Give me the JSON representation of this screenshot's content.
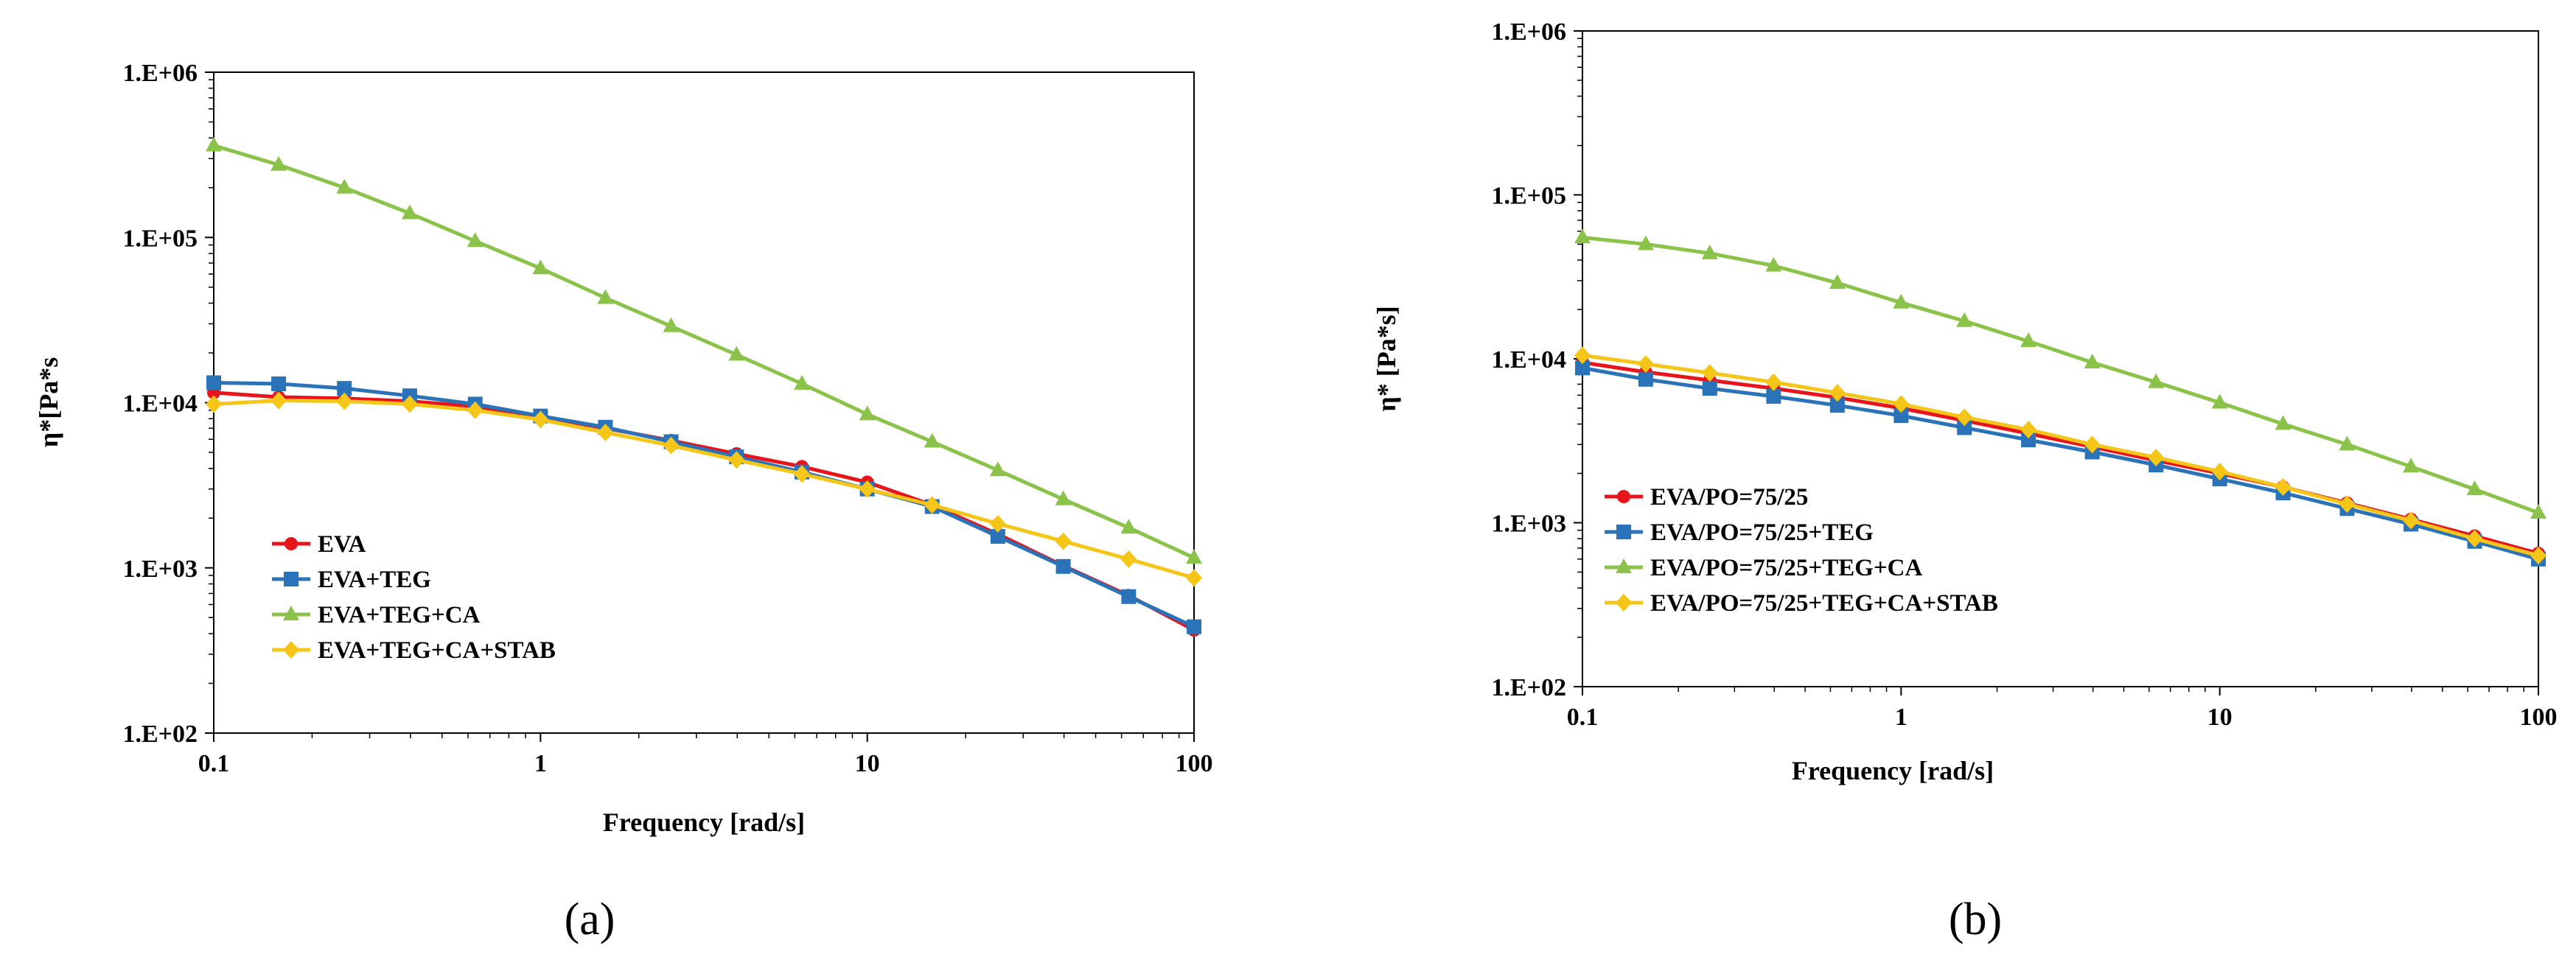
{
  "chart_data": [
    {
      "type": "line",
      "panel_label": "(a)",
      "title": "",
      "xlabel": "Frequency [rad/s]",
      "ylabel": "η*[Pa*s",
      "xscale": "log",
      "yscale": "log",
      "xlim": [
        0.1,
        100
      ],
      "ylim": [
        100,
        1000000
      ],
      "x_ticks": [
        "0.1",
        "1",
        "10",
        "100"
      ],
      "y_ticks": [
        "1.E+02",
        "1.E+03",
        "1.E+04",
        "1.E+05",
        "1.E+06"
      ],
      "grid": false,
      "legend_position": "bottom-left",
      "x": [
        0.1,
        0.158,
        0.251,
        0.398,
        0.631,
        1,
        1.58,
        2.51,
        3.98,
        6.31,
        10,
        15.8,
        25.1,
        39.8,
        63.1,
        100
      ],
      "series": [
        {
          "name": "EVA",
          "color": "#e8141b",
          "marker": "circle",
          "values": [
            11500,
            10800,
            10600,
            10200,
            9500,
            8200,
            7000,
            5900,
            4900,
            4100,
            3300,
            2400,
            1600,
            1030,
            680,
            420
          ]
        },
        {
          "name": "EVA+TEG",
          "color": "#2a73b8",
          "marker": "square",
          "values": [
            13200,
            13000,
            12200,
            11000,
            9800,
            8300,
            7100,
            5800,
            4700,
            3800,
            3000,
            2350,
            1550,
            1020,
            670,
            440
          ]
        },
        {
          "name": "EVA+TEG+CA",
          "color": "#8bc34a",
          "marker": "triangle",
          "values": [
            360000,
            275000,
            200000,
            140000,
            95000,
            65000,
            43000,
            29000,
            19500,
            13000,
            8500,
            5800,
            3900,
            2600,
            1750,
            1150
          ]
        },
        {
          "name": "EVA+TEG+CA+STAB",
          "color": "#f5c518",
          "marker": "diamond",
          "values": [
            9800,
            10300,
            10200,
            9800,
            9000,
            7900,
            6600,
            5500,
            4500,
            3700,
            3000,
            2400,
            1850,
            1450,
            1130,
            870
          ]
        }
      ]
    },
    {
      "type": "line",
      "panel_label": "(b)",
      "title": "",
      "xlabel": "Frequency [rad/s]",
      "ylabel": "η* [Pa*s]",
      "xscale": "log",
      "yscale": "log",
      "xlim": [
        0.1,
        100
      ],
      "ylim": [
        100,
        1000000
      ],
      "x_ticks": [
        "0.1",
        "1",
        "10",
        "100"
      ],
      "y_ticks": [
        "1.E+02",
        "1.E+03",
        "1.E+04",
        "1.E+05",
        "1.E+06"
      ],
      "grid": false,
      "legend_position": "bottom-left",
      "x": [
        0.1,
        0.158,
        0.251,
        0.398,
        0.631,
        1,
        1.58,
        2.51,
        3.98,
        6.31,
        10,
        15.8,
        25.1,
        39.8,
        63.1,
        100
      ],
      "series": [
        {
          "name": "EVA/PO=75/25",
          "color": "#e8141b",
          "marker": "circle",
          "values": [
            9500,
            8300,
            7400,
            6600,
            5800,
            5000,
            4200,
            3500,
            2900,
            2400,
            2000,
            1650,
            1320,
            1050,
            830,
            650
          ]
        },
        {
          "name": "EVA/PO=75/25+TEG",
          "color": "#2a73b8",
          "marker": "square",
          "values": [
            8800,
            7500,
            6600,
            5900,
            5200,
            4500,
            3800,
            3200,
            2700,
            2250,
            1850,
            1520,
            1220,
            980,
            770,
            600
          ]
        },
        {
          "name": "EVA/PO=75/25+TEG+CA",
          "color": "#8bc34a",
          "marker": "triangle",
          "values": [
            55000,
            50000,
            44000,
            37000,
            29000,
            22000,
            17000,
            12800,
            9500,
            7200,
            5400,
            4000,
            3000,
            2200,
            1600,
            1150
          ]
        },
        {
          "name": "EVA/PO=75/25+TEG+CA+STAB",
          "color": "#f5c518",
          "marker": "diamond",
          "values": [
            10500,
            9300,
            8200,
            7200,
            6200,
            5300,
            4400,
            3700,
            3000,
            2500,
            2050,
            1650,
            1300,
            1030,
            800,
            630
          ]
        }
      ]
    }
  ]
}
